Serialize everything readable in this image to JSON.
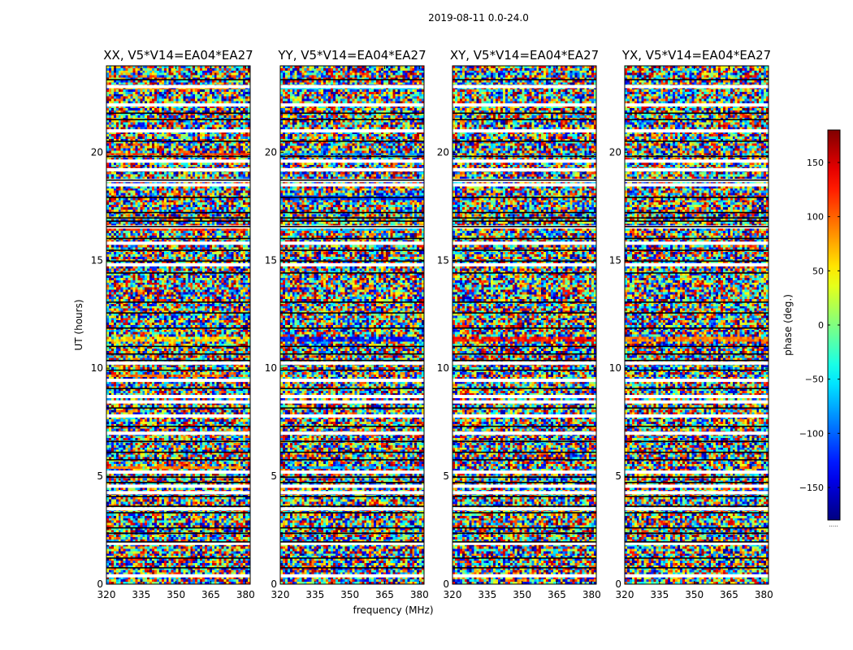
{
  "chart_data": {
    "type": "heatmap",
    "suptitle": "2019-08-11 0.0-24.0",
    "xlabel": "frequency (MHz)",
    "ylabel": "UT (hours)",
    "xlim": [
      320,
      382
    ],
    "ylim": [
      0,
      24
    ],
    "xticks": [
      320,
      335,
      350,
      365,
      380
    ],
    "yticks": [
      0,
      5,
      10,
      15,
      20
    ],
    "colorbar": {
      "label": "phase (deg.)",
      "range": [
        -180,
        180
      ],
      "ticks": [
        -150,
        -100,
        -50,
        0,
        50,
        100,
        150
      ],
      "ticks_text": [
        "−150",
        "−100",
        "−50",
        "0",
        "50",
        "100",
        "150"
      ],
      "colormap": "jet",
      "extra_label": "....."
    },
    "panels": [
      {
        "title": "XX, V5*V14=EA04*EA27",
        "coherent_bands": [
          {
            "t0": 22.9,
            "t1": 23.05,
            "phase": 80
          },
          {
            "t0": 19.85,
            "t1": 20.0,
            "phase": 110
          },
          {
            "t0": 16.35,
            "t1": 16.5,
            "phase": 120
          },
          {
            "t0": 11.2,
            "t1": 11.5,
            "phase": 60
          },
          {
            "t0": 9.6,
            "t1": 9.75,
            "phase": 95
          },
          {
            "t0": 5.3,
            "t1": 5.5,
            "phase": 90
          }
        ]
      },
      {
        "title": "YY, V5*V14=EA04*EA27",
        "coherent_bands": [
          {
            "t0": 22.9,
            "t1": 23.05,
            "phase": -60
          },
          {
            "t0": 19.85,
            "t1": 20.0,
            "phase": -80
          },
          {
            "t0": 17.8,
            "t1": 18.0,
            "phase": -110
          },
          {
            "t0": 16.35,
            "t1": 16.5,
            "phase": -70
          },
          {
            "t0": 11.2,
            "t1": 11.5,
            "phase": -130
          },
          {
            "t0": 5.3,
            "t1": 5.5,
            "phase": -70
          }
        ]
      },
      {
        "title": "XY, V5*V14=EA04*EA27",
        "coherent_bands": [
          {
            "t0": 11.2,
            "t1": 11.4,
            "phase": 130
          }
        ]
      },
      {
        "title": "YX, V5*V14=EA04*EA27",
        "coherent_bands": [
          {
            "t0": 11.2,
            "t1": 11.4,
            "phase": 90
          }
        ]
      }
    ],
    "flagged_white_rows_hours": [
      23.0,
      22.15,
      20.95,
      19.55,
      19.15,
      18.65,
      18.45,
      16.5,
      15.75,
      14.75,
      10.2,
      9.4,
      8.65,
      8.4,
      7.75,
      6.95,
      5.15,
      4.5,
      4.2,
      3.45,
      1.85,
      0.35
    ],
    "flagged_black_rows_hours": [
      23.35,
      21.8,
      21.5,
      20.5,
      19.8,
      18.7,
      17.9,
      17.2,
      16.95,
      16.8,
      16.55,
      16.0,
      15.45,
      14.95,
      14.4,
      13.05,
      12.55,
      11.85,
      11.0,
      10.65,
      10.35,
      9.9,
      9.05,
      8.15,
      7.3,
      6.6,
      6.1,
      5.75,
      4.95,
      4.7,
      4.05,
      3.6,
      3.3,
      2.6,
      2.35,
      1.95,
      1.2,
      0.75
    ]
  }
}
